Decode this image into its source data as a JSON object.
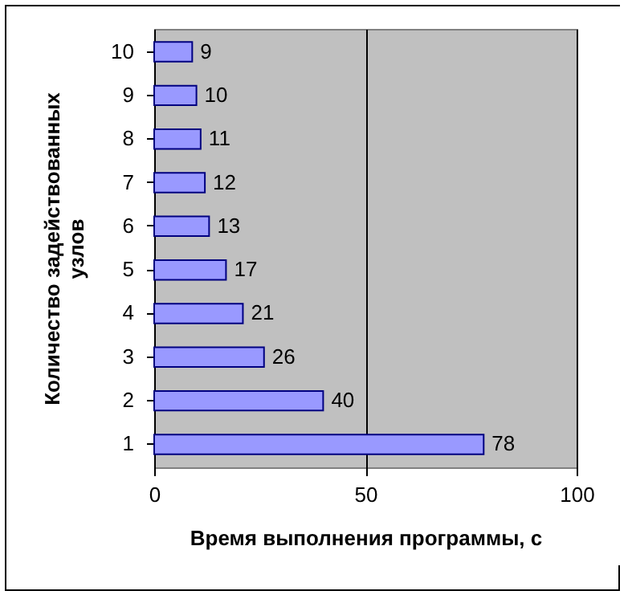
{
  "chart_data": {
    "type": "bar",
    "orientation": "horizontal",
    "xlabel": "Время выполнения программы, с",
    "ylabel": "Количество задействованных узлов",
    "categories": [
      "10",
      "9",
      "8",
      "7",
      "6",
      "5",
      "4",
      "3",
      "2",
      "1"
    ],
    "values": [
      9,
      10,
      11,
      12,
      13,
      17,
      21,
      26,
      40,
      78
    ],
    "color": "#9999ff",
    "xlim": [
      0,
      100
    ],
    "xticks": [
      0,
      50,
      100
    ],
    "grid": "x",
    "data_labels": true
  }
}
